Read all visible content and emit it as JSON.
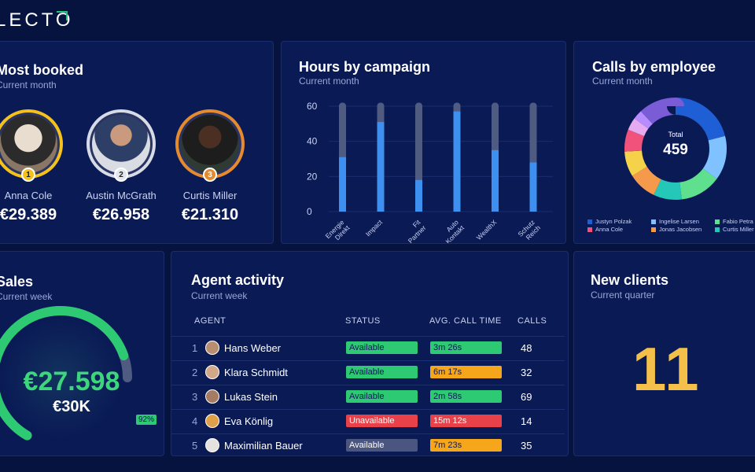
{
  "brand": {
    "logo_text": "LECTO"
  },
  "most_booked": {
    "title": "Most booked",
    "subtitle": "Current month",
    "people": [
      {
        "rank": "1",
        "name": "Anna Cole",
        "amount": "€29.389",
        "ring_color": "#f5c21b"
      },
      {
        "rank": "2",
        "name": "Austin McGrath",
        "amount": "€26.958",
        "ring_color": "#d7dbe6"
      },
      {
        "rank": "3",
        "name": "Curtis Miller",
        "amount": "€21.310",
        "ring_color": "#e68a2e"
      }
    ]
  },
  "hours_by_campaign": {
    "title": "Hours by campaign",
    "subtitle": "Current month"
  },
  "chart_data": {
    "type": "bar",
    "categories": [
      "Energie Direkt",
      "Impact",
      "Fit Partner",
      "Auto Kontakt",
      "WealthX",
      "Schutz Reich"
    ],
    "series": [
      {
        "values": [
          31,
          51,
          18,
          57,
          35,
          28
        ]
      }
    ],
    "ylim": [
      0,
      62
    ],
    "yticks": [
      0,
      20,
      40,
      60
    ],
    "bar_color": "#3d8ff0",
    "track_color": "#4f5b80"
  },
  "calls_by_employee": {
    "title": "Calls by employee",
    "subtitle": "Current month",
    "center_label": "Total",
    "center_value": "459",
    "legend": [
      {
        "label": "Justyn Polzak",
        "color": "#1e5fd6"
      },
      {
        "label": "Ingelise Larsen",
        "color": "#7fc2ff"
      },
      {
        "label": "Fabio Petra",
        "color": "#5ee08f"
      },
      {
        "label": "Anna Cole",
        "color": "#f0527c"
      },
      {
        "label": "Jonas Jacobsen",
        "color": "#f59a4a"
      },
      {
        "label": "Curtis Miller",
        "color": "#25c7b9"
      }
    ],
    "segments": [
      {
        "value": 21,
        "color": "#1e5fd6"
      },
      {
        "value": 14,
        "color": "#7fc2ff"
      },
      {
        "value": 13,
        "color": "#5ee08f"
      },
      {
        "value": 9,
        "color": "#25c7b9"
      },
      {
        "value": 9,
        "color": "#f59a4a"
      },
      {
        "value": 8,
        "color": "#f5d24a"
      },
      {
        "value": 7,
        "color": "#f0527c"
      },
      {
        "value": 4,
        "color": "#e5aaf0"
      },
      {
        "value": 3,
        "color": "#b78cff"
      },
      {
        "value": 12,
        "color": "#7a5cd6"
      }
    ]
  },
  "sales": {
    "title": "Sales",
    "subtitle": "Current week",
    "value": "€27.598",
    "target": "€30K",
    "percent_label": "92%",
    "progress": 0.92
  },
  "agent_activity": {
    "title": "Agent activity",
    "subtitle": "Current week",
    "columns": [
      "AGENT",
      "STATUS",
      "AVG. CALL TIME",
      "CALLS"
    ],
    "rows": [
      {
        "num": "1",
        "name": "Hans Weber",
        "status": "Available",
        "status_color": "#2ec973",
        "time": "3m 26s",
        "time_color": "#2ec973",
        "calls": "48"
      },
      {
        "num": "2",
        "name": "Klara Schmidt",
        "status": "Available",
        "status_color": "#2ec973",
        "time": "6m 17s",
        "time_color": "#f5a61b",
        "calls": "32"
      },
      {
        "num": "3",
        "name": "Lukas Stein",
        "status": "Available",
        "status_color": "#2ec973",
        "time": "2m 58s",
        "time_color": "#2ec973",
        "calls": "69"
      },
      {
        "num": "4",
        "name": "Eva Könlig",
        "status": "Unavailable",
        "status_color": "#e8414a",
        "time": "15m 12s",
        "time_color": "#e8414a",
        "calls": "14"
      },
      {
        "num": "5",
        "name": "Maximilian Bauer",
        "status": "Available",
        "status_color": "#4a5680",
        "time": "7m 23s",
        "time_color": "#f5a61b",
        "calls": "35"
      }
    ]
  },
  "new_clients": {
    "title": "New clients",
    "subtitle": "Current quarter",
    "value": "11"
  }
}
